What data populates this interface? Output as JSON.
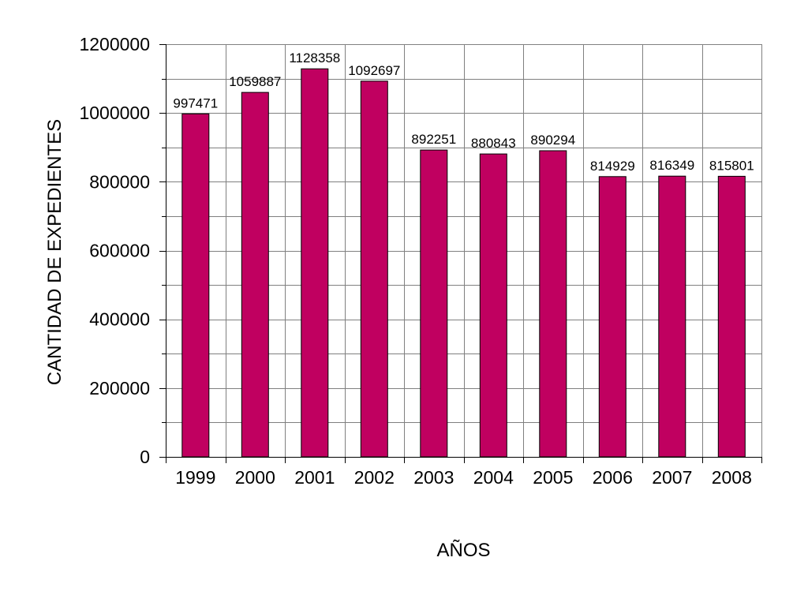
{
  "chart_data": {
    "type": "bar",
    "title": "",
    "xlabel": "AÑOS",
    "ylabel": "CANTIDAD DE EXPEDIENTES",
    "categories": [
      "1999",
      "2000",
      "2001",
      "2002",
      "2003",
      "2004",
      "2005",
      "2006",
      "2007",
      "2008"
    ],
    "values": [
      997471,
      1059887,
      1128358,
      1092697,
      892251,
      880843,
      890294,
      814929,
      816349,
      815801
    ],
    "data_labels": [
      "997471",
      "1059887",
      "1128358",
      "1092697",
      "892251",
      "880843",
      "890294",
      "814929",
      "816349",
      "815801"
    ],
    "ylim": [
      0,
      1200000
    ],
    "y_ticks": [
      0,
      200000,
      400000,
      600000,
      800000,
      1000000,
      1200000
    ],
    "y_tick_labels": [
      "0",
      "200000",
      "400000",
      "600000",
      "800000",
      "1000000",
      "1200000"
    ],
    "grid": true,
    "legend": "none",
    "colors": {
      "bar": "#C00060",
      "bar_edge": "#000000",
      "grid": "#808080",
      "background": "#FFFFFF"
    }
  }
}
